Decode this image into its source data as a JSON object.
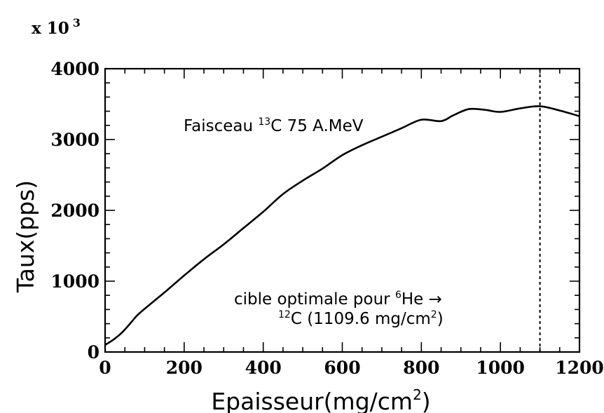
{
  "chart_data": {
    "type": "line",
    "scale_note": {
      "base": "x 10",
      "exponent": "3"
    },
    "xlabel": {
      "base": "Epaisseur(mg/cm",
      "sup": "2",
      "tail": ")"
    },
    "ylabel": "Taux(pps)",
    "xlim": [
      0,
      1200
    ],
    "ylim": [
      0,
      4000
    ],
    "xticks": [
      0,
      200,
      400,
      600,
      800,
      1000,
      1200
    ],
    "yticks": [
      0,
      1000,
      2000,
      3000,
      4000
    ],
    "x_minor_step": 50,
    "y_minor_step": 200,
    "grid": false,
    "series": [
      {
        "x": [
          0,
          20,
          40,
          60,
          80,
          100,
          150,
          200,
          250,
          300,
          350,
          400,
          450,
          500,
          550,
          600,
          650,
          700,
          750,
          800,
          850,
          880,
          920,
          960,
          1000,
          1050,
          1100,
          1150,
          1200
        ],
        "y": [
          100,
          170,
          260,
          380,
          510,
          610,
          840,
          1080,
          1310,
          1520,
          1750,
          1980,
          2230,
          2420,
          2590,
          2780,
          2920,
          3040,
          3160,
          3280,
          3260,
          3340,
          3430,
          3420,
          3390,
          3440,
          3470,
          3410,
          3330
        ]
      }
    ],
    "reference_line": {
      "x": 1100,
      "style": "dotted"
    },
    "annotations": {
      "beam": {
        "prefix": "Faisceau ",
        "sup": "13",
        "suffix": "C 75 A.MeV"
      },
      "target_line1": {
        "prefix": "cible optimale pour ",
        "sup": "6",
        "suffix": "He →"
      },
      "target_line2": {
        "prefix": "",
        "sup": "12",
        "suffix": "C (1109.6 mg/cm",
        "sup2": "2",
        "tail": ")"
      }
    }
  }
}
